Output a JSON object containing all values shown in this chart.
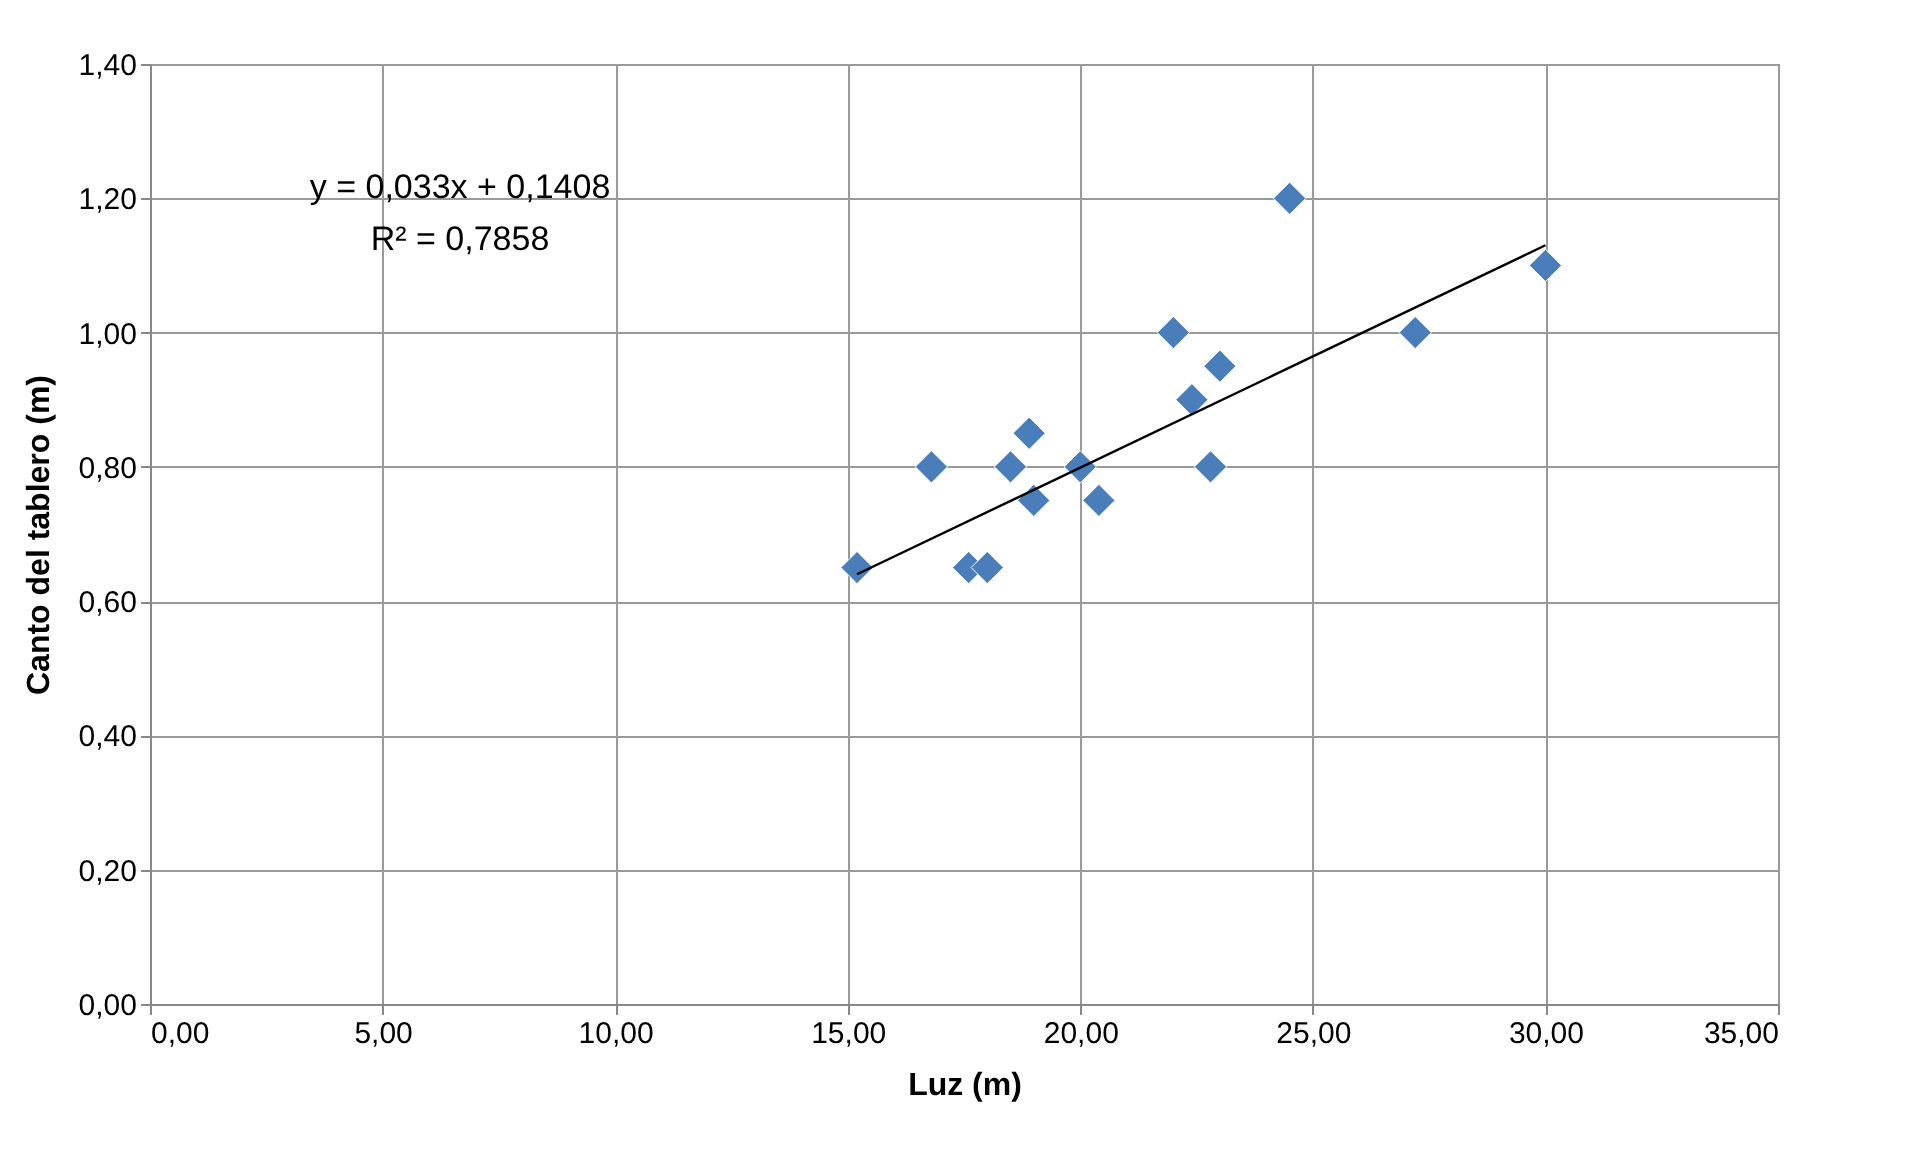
{
  "chart_data": {
    "type": "scatter",
    "xlabel": "Luz (m)",
    "ylabel": "Canto del tablero (m)",
    "series": [
      {
        "color": "#4a7ebb",
        "marker": "diamond",
        "x": [
          15.2,
          16.8,
          17.6,
          18.0,
          18.5,
          18.9,
          19.0,
          20.0,
          20.4,
          22.0,
          22.4,
          22.8,
          23.0,
          24.5,
          27.2,
          30.0
        ],
        "values": [
          0.65,
          0.8,
          0.65,
          0.65,
          0.8,
          0.85,
          0.75,
          0.8,
          0.75,
          1.0,
          0.9,
          0.8,
          0.95,
          1.2,
          1.0,
          1.1
        ]
      },
      {
        "type": "line",
        "color": "#000000",
        "marker": "none",
        "line_style": "solid",
        "x": [
          15.2,
          30.0
        ],
        "values": [
          0.64,
          1.13
        ]
      }
    ],
    "xlim": [
      0,
      35
    ],
    "xticks": [
      {
        "value": 0,
        "label": "0,00"
      },
      {
        "value": 5,
        "label": "5,00"
      },
      {
        "value": 10,
        "label": "10,00"
      },
      {
        "value": 15,
        "label": "15,00"
      },
      {
        "value": 20,
        "label": "20,00"
      },
      {
        "value": 25,
        "label": "25,00"
      },
      {
        "value": 30,
        "label": "30,00"
      },
      {
        "value": 35,
        "label": "35,00"
      }
    ],
    "ylim": [
      0,
      1.4
    ],
    "yticks": [
      {
        "value": 0,
        "label": "0,00"
      },
      {
        "value": 0.2,
        "label": "0,20"
      },
      {
        "value": 0.4,
        "label": "0,40"
      },
      {
        "value": 0.6,
        "label": "0,60"
      },
      {
        "value": 0.8,
        "label": "0,80"
      },
      {
        "value": 1.0,
        "label": "1,00"
      },
      {
        "value": 1.2,
        "label": "1,20"
      },
      {
        "value": 1.4,
        "label": "1,40"
      }
    ],
    "grid": true,
    "annotations": [
      "y = 0,033x + 0,1408",
      "R² = 0,7858"
    ]
  }
}
